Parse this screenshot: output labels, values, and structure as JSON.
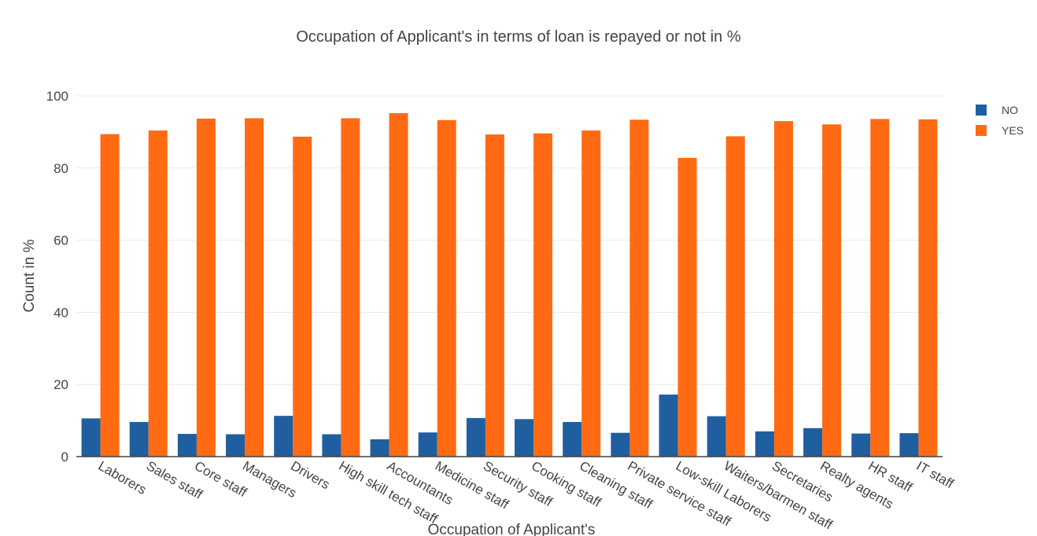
{
  "chart_data": {
    "type": "bar",
    "title": "Occupation of Applicant's in terms of loan is repayed or not in %",
    "xlabel": "Occupation of Applicant's",
    "ylabel": "Count in %",
    "ylim": [
      0,
      100
    ],
    "yticks": [
      0,
      20,
      40,
      60,
      80,
      100
    ],
    "grid": true,
    "legend_position": "top-right",
    "categories": [
      "Laborers",
      "Sales staff",
      "Core staff",
      "Managers",
      "Drivers",
      "High skill tech staff",
      "Accountants",
      "Medicine staff",
      "Security staff",
      "Cooking staff",
      "Cleaning staff",
      "Private service staff",
      "Low-skill Laborers",
      "Waiters/barmen staff",
      "Secretaries",
      "Realty agents",
      "HR staff",
      "IT staff"
    ],
    "series": [
      {
        "name": "NO",
        "color": "#1f5fa0",
        "values": [
          10.6,
          9.6,
          6.3,
          6.2,
          11.3,
          6.2,
          4.8,
          6.7,
          10.7,
          10.4,
          9.6,
          6.6,
          17.2,
          11.2,
          7.0,
          7.9,
          6.4,
          6.5
        ]
      },
      {
        "name": "YES",
        "color": "#ff6a13",
        "values": [
          89.4,
          90.4,
          93.7,
          93.8,
          88.7,
          93.8,
          95.2,
          93.3,
          89.3,
          89.6,
          90.4,
          93.4,
          82.8,
          88.8,
          93.0,
          92.1,
          93.6,
          93.5
        ]
      }
    ]
  }
}
